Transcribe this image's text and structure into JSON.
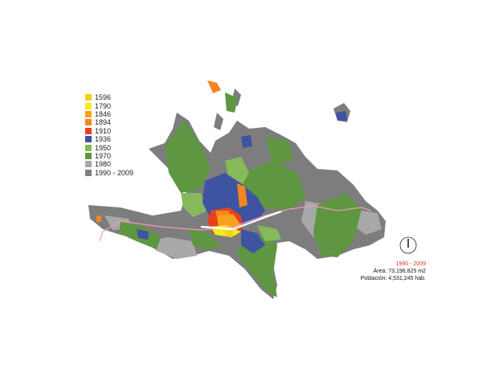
{
  "legend": [
    {
      "label": "1596",
      "color": "#f2d21b"
    },
    {
      "label": "1790",
      "color": "#f7ec1a"
    },
    {
      "label": "1846",
      "color": "#f7a21a"
    },
    {
      "label": "1894",
      "color": "#f48620"
    },
    {
      "label": "1910",
      "color": "#e8411f"
    },
    {
      "label": "1936",
      "color": "#3f53a3"
    },
    {
      "label": "1950",
      "color": "#86b95a"
    },
    {
      "label": "1970",
      "color": "#5e9641"
    },
    {
      "label": "1980",
      "color": "#a8a8a8"
    },
    {
      "label": "1990 - 2009",
      "color": "#7d7d7d"
    }
  ],
  "info": {
    "period": "1990 - 2009",
    "area": "Área: 73,196,825 m2",
    "population": "Población: 4,531,245 hab."
  },
  "colors": {
    "road": "#f29bb0"
  }
}
